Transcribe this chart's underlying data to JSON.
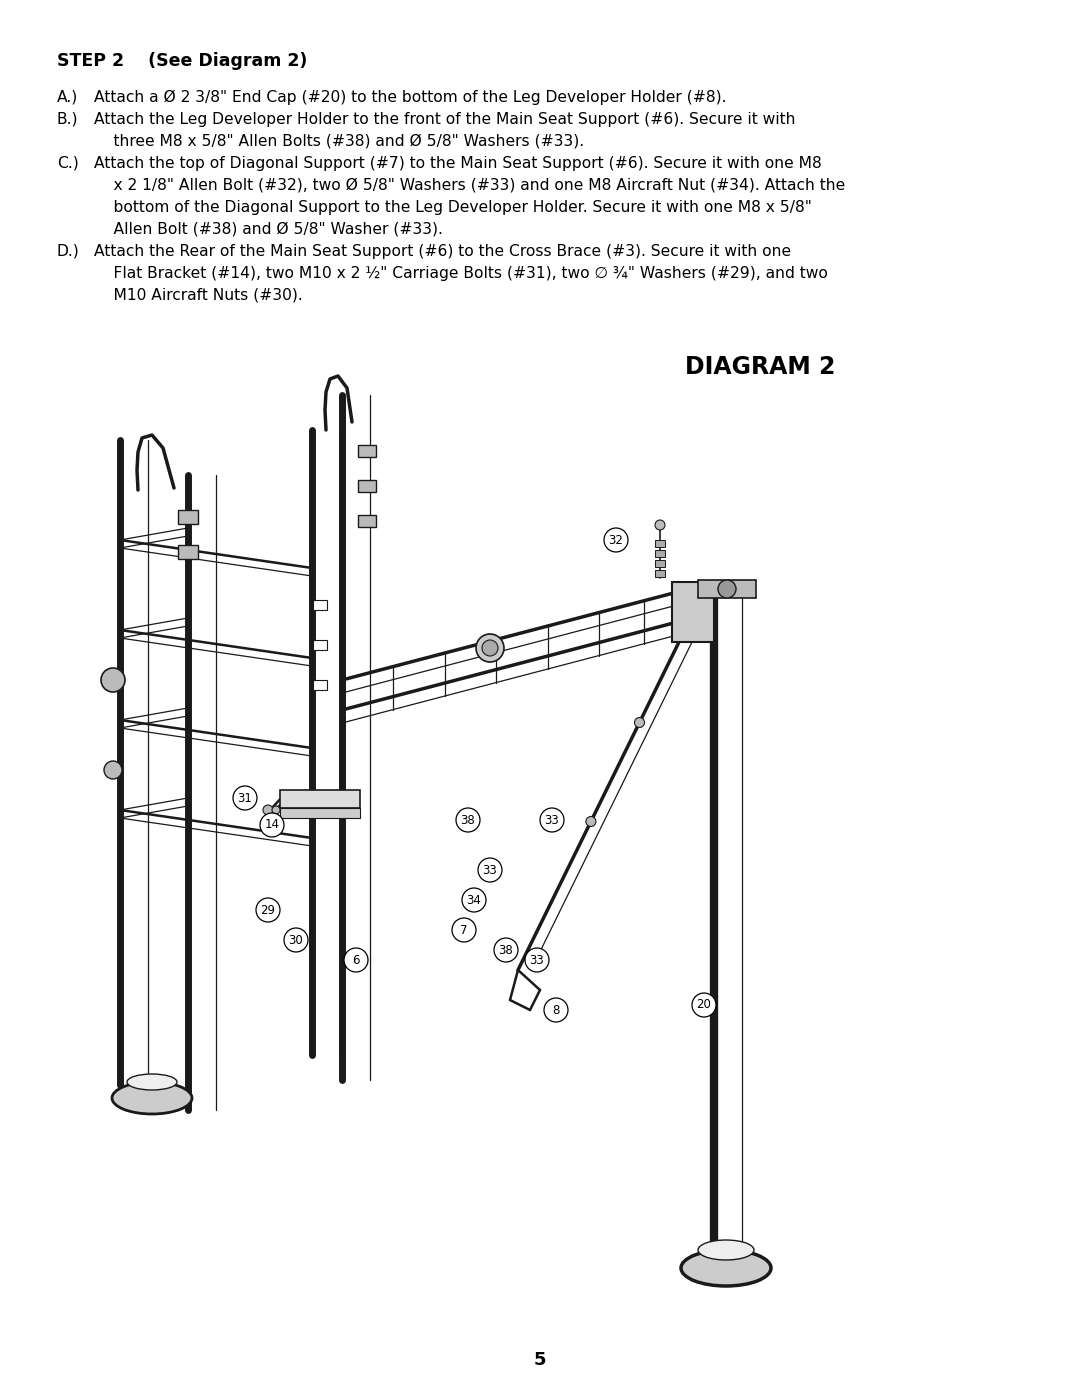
{
  "background_color": "#ffffff",
  "page_number": "5",
  "step_title": "STEP 2    (See Diagram 2)",
  "diagram_title": "DIAGRAM 2",
  "text_lines": [
    {
      "prefix": "A.)",
      "text": "Attach a Ø 2 3/8\" End Cap (#20) to the bottom of the Leg Developer Holder (#8)."
    },
    {
      "prefix": "B.)",
      "text": "Attach the Leg Developer Holder to the front of the Main Seat Support (#6). Secure it with"
    },
    {
      "prefix": "",
      "text": "    three M8 x 5/8\" Allen Bolts (#38) and Ø 5/8\" Washers (#33)."
    },
    {
      "prefix": "C.)",
      "text": "Attach the top of Diagonal Support (#7) to the Main Seat Support (#6). Secure it with one M8"
    },
    {
      "prefix": "",
      "text": "    x 2 1/8\" Allen Bolt (#32), two Ø 5/8\" Washers (#33) and one M8 Aircraft Nut (#34). Attach the"
    },
    {
      "prefix": "",
      "text": "    bottom of the Diagonal Support to the Leg Developer Holder. Secure it with one M8 x 5/8\""
    },
    {
      "prefix": "",
      "text": "    Allen Bolt (#38) and Ø 5/8\" Washer (#33)."
    },
    {
      "prefix": "D.)",
      "text": "Attach the Rear of the Main Seat Support (#6) to the Cross Brace (#3). Secure it with one"
    },
    {
      "prefix": "",
      "text": "    Flat Bracket (#14), two M10 x 2 ½\" Carriage Bolts (#31), two ∅ ¾\" Washers (#29), and two"
    },
    {
      "prefix": "",
      "text": "    M10 Aircraft Nuts (#30)."
    }
  ],
  "lw_post": 5.0,
  "lw_tube": 2.5,
  "lw_bar": 1.8,
  "lw_thin": 0.9,
  "gray": "#888888",
  "dark": "#1a1a1a",
  "lgray": "#bbbbbb"
}
